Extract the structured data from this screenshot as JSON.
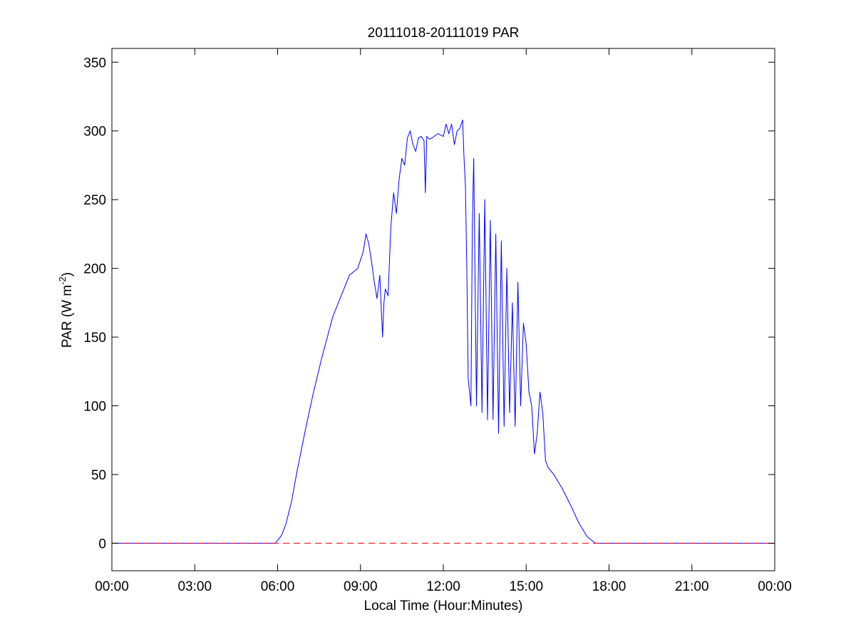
{
  "chart_data": {
    "type": "line",
    "title": "20111018-20111019 PAR",
    "xlabel": "Local Time (Hour:Minutes)",
    "ylabel": {
      "main": "PAR (W m",
      "superscript": "-2",
      "close": ")"
    },
    "x_unit": "hours",
    "xlim": [
      0,
      24
    ],
    "ylim": [
      -20,
      360
    ],
    "x_ticks": [
      0,
      3,
      6,
      9,
      12,
      15,
      18,
      21,
      24
    ],
    "x_tick_labels": [
      "00:00",
      "03:00",
      "06:00",
      "09:00",
      "12:00",
      "15:00",
      "18:00",
      "21:00",
      "00:00"
    ],
    "y_ticks": [
      0,
      50,
      100,
      150,
      200,
      250,
      300,
      350
    ],
    "y_tick_labels": [
      "0",
      "50",
      "100",
      "150",
      "200",
      "250",
      "300",
      "350"
    ],
    "grid": false,
    "colors": {
      "par_line": "#0000ff",
      "baseline": "#ff0000"
    },
    "series": [
      {
        "style": "solid",
        "color": "#0000ff",
        "x": [
          0,
          5.9,
          6.0,
          6.15,
          6.3,
          6.5,
          6.7,
          7.0,
          7.3,
          7.6,
          8.0,
          8.3,
          8.6,
          8.9,
          9.1,
          9.2,
          9.3,
          9.4,
          9.5,
          9.6,
          9.7,
          9.8,
          9.85,
          9.9,
          10.0,
          10.1,
          10.2,
          10.3,
          10.4,
          10.5,
          10.6,
          10.7,
          10.8,
          10.9,
          11.0,
          11.1,
          11.2,
          11.3,
          11.35,
          11.4,
          11.5,
          11.6,
          11.8,
          12.0,
          12.1,
          12.2,
          12.3,
          12.4,
          12.5,
          12.6,
          12.7,
          12.75,
          12.8,
          12.85,
          12.9,
          13.0,
          13.05,
          13.1,
          13.2,
          13.3,
          13.4,
          13.5,
          13.6,
          13.7,
          13.8,
          13.9,
          14.0,
          14.1,
          14.2,
          14.3,
          14.4,
          14.5,
          14.6,
          14.7,
          14.8,
          14.9,
          15.0,
          15.1,
          15.2,
          15.3,
          15.4,
          15.5,
          15.6,
          15.7,
          15.8,
          16.0,
          16.3,
          16.6,
          16.9,
          17.2,
          17.5,
          17.7,
          24
        ],
        "y": [
          0,
          0,
          2,
          6,
          14,
          30,
          52,
          82,
          110,
          135,
          165,
          180,
          195,
          200,
          212,
          225,
          218,
          205,
          190,
          178,
          195,
          150,
          175,
          185,
          180,
          230,
          255,
          240,
          265,
          280,
          275,
          295,
          300,
          290,
          285,
          295,
          296,
          293,
          255,
          296,
          294,
          295,
          298,
          296,
          305,
          298,
          305,
          290,
          300,
          302,
          308,
          280,
          260,
          200,
          120,
          100,
          230,
          280,
          100,
          240,
          95,
          250,
          90,
          235,
          90,
          225,
          80,
          220,
          85,
          200,
          95,
          175,
          85,
          190,
          100,
          160,
          145,
          110,
          100,
          65,
          80,
          110,
          95,
          60,
          55,
          50,
          40,
          28,
          15,
          5,
          0,
          0,
          0
        ]
      },
      {
        "style": "dashed",
        "color": "#ff0000",
        "x": [
          0,
          24
        ],
        "y": [
          0,
          0
        ]
      }
    ]
  }
}
